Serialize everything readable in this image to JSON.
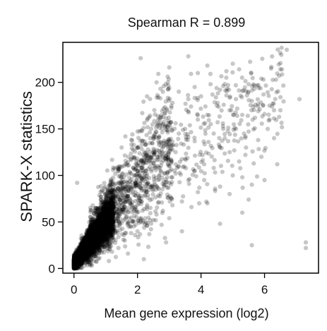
{
  "chart_data": {
    "type": "scatter",
    "title": "Spearman R = 0.899",
    "xlabel": "Mean gene expression (log2)",
    "ylabel": "SPARK-X statistics",
    "xlim": [
      -0.35,
      7.7
    ],
    "ylim": [
      -5,
      243
    ],
    "x_ticks": [
      0,
      2,
      4,
      6
    ],
    "y_ticks": [
      0,
      50,
      100,
      150,
      200
    ],
    "grid": false,
    "legend": "none",
    "point_color": "#000000",
    "point_opacity": 0.22,
    "points": [
      [
        2.1,
        226
      ],
      [
        3.6,
        228
      ],
      [
        4.2,
        218
      ],
      [
        6.7,
        235
      ],
      [
        5.0,
        220
      ],
      [
        5.2,
        214
      ],
      [
        4.8,
        212
      ],
      [
        3.0,
        216
      ],
      [
        3.9,
        210
      ],
      [
        5.5,
        198
      ],
      [
        5.9,
        204
      ],
      [
        7.1,
        182
      ],
      [
        6.3,
        170
      ],
      [
        6.5,
        170
      ],
      [
        5.7,
        162
      ],
      [
        6.0,
        166
      ],
      [
        4.9,
        170
      ],
      [
        4.5,
        175
      ],
      [
        4.2,
        165
      ],
      [
        3.9,
        160
      ],
      [
        3.5,
        150
      ],
      [
        3.3,
        145
      ],
      [
        5.1,
        150
      ],
      [
        5.4,
        142
      ],
      [
        5.8,
        138
      ],
      [
        6.1,
        150
      ],
      [
        6.3,
        140
      ],
      [
        4.6,
        130
      ],
      [
        4.9,
        125
      ],
      [
        5.2,
        115
      ],
      [
        5.0,
        100
      ],
      [
        5.3,
        98
      ],
      [
        4.4,
        108
      ],
      [
        4.1,
        112
      ],
      [
        3.8,
        105
      ],
      [
        3.6,
        95
      ],
      [
        3.2,
        102
      ],
      [
        3.0,
        92
      ],
      [
        4.6,
        88
      ],
      [
        4.9,
        80
      ],
      [
        5.5,
        74
      ],
      [
        4.2,
        70
      ],
      [
        3.4,
        72
      ],
      [
        3.1,
        68
      ],
      [
        2.8,
        62
      ],
      [
        2.6,
        58
      ],
      [
        3.7,
        66
      ],
      [
        4.6,
        48
      ],
      [
        5.3,
        60
      ],
      [
        3.0,
        54
      ],
      [
        2.5,
        52
      ],
      [
        2.3,
        46
      ],
      [
        2.0,
        40
      ],
      [
        1.8,
        38
      ],
      [
        1.6,
        30
      ],
      [
        1.4,
        22
      ],
      [
        1.2,
        18
      ],
      [
        1.7,
        16
      ],
      [
        1.1,
        8
      ],
      [
        2.2,
        10
      ],
      [
        2.9,
        28
      ],
      [
        3.4,
        40
      ],
      [
        5.6,
        25
      ],
      [
        7.3,
        28
      ],
      [
        7.3,
        22
      ],
      [
        0.1,
        92
      ],
      [
        1.5,
        130
      ],
      [
        2.3,
        185
      ],
      [
        2.6,
        200
      ],
      [
        2.8,
        190
      ],
      [
        2.7,
        160
      ],
      [
        3.1,
        178
      ],
      [
        3.3,
        190
      ],
      [
        3.6,
        182
      ],
      [
        3.8,
        195
      ],
      [
        4.0,
        185
      ],
      [
        4.3,
        198
      ],
      [
        4.6,
        192
      ],
      [
        4.8,
        186
      ],
      [
        5.1,
        182
      ],
      [
        5.6,
        180
      ],
      [
        2.4,
        140
      ],
      [
        2.9,
        135
      ],
      [
        3.2,
        125
      ],
      [
        2.7,
        120
      ],
      [
        3.5,
        118
      ],
      [
        4.4,
        145
      ],
      [
        4.7,
        150
      ],
      [
        5.9,
        120
      ],
      [
        6.4,
        112
      ],
      [
        1.9,
        118
      ],
      [
        2.2,
        115
      ],
      [
        1.8,
        102
      ],
      [
        2.5,
        88
      ],
      [
        2.1,
        78
      ],
      [
        3.9,
        82
      ],
      [
        4.1,
        95
      ],
      [
        5.6,
        90
      ],
      [
        6.0,
        95
      ],
      [
        1.0,
        60
      ],
      [
        1.3,
        72
      ],
      [
        0.8,
        54
      ]
    ]
  }
}
